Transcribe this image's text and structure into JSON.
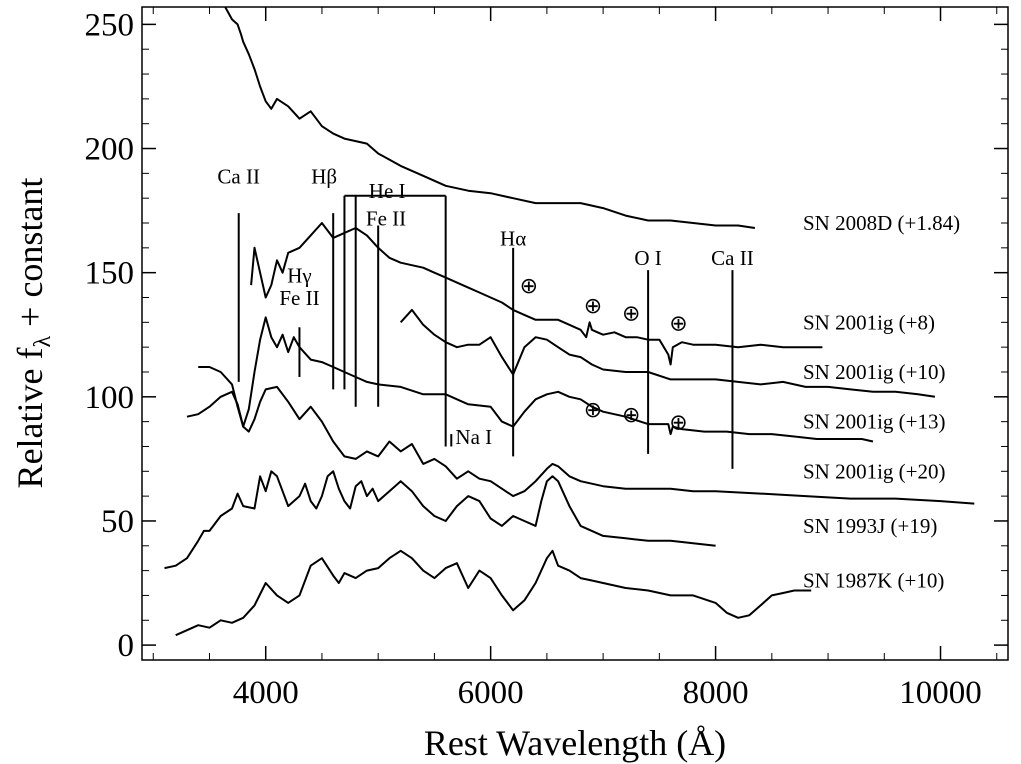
{
  "chart_data": {
    "type": "line",
    "xlabel": "Rest Wavelength (Å)",
    "ylabel_main": "Relative f",
    "ylabel_sub": "λ",
    "ylabel_tail": " + constant",
    "xlim": [
      2900,
      10600
    ],
    "ylim": [
      -6,
      257
    ],
    "x_ticks": [
      {
        "value": 4000,
        "label": "4000"
      },
      {
        "value": 6000,
        "label": "6000"
      },
      {
        "value": 8000,
        "label": "8000"
      },
      {
        "value": 10000,
        "label": "10000"
      }
    ],
    "y_ticks": [
      {
        "value": 0,
        "label": "0"
      },
      {
        "value": 50,
        "label": "50"
      },
      {
        "value": 100,
        "label": "100"
      },
      {
        "value": 150,
        "label": "150"
      },
      {
        "value": 200,
        "label": "200"
      },
      {
        "value": 250,
        "label": "250"
      }
    ],
    "series": [
      {
        "name": "SN 2008D",
        "label": "SN 2008D  (+1.84)",
        "label_y": 170,
        "x": [
          3640,
          3700,
          3750,
          3780,
          3800,
          3850,
          3900,
          3950,
          4000,
          4050,
          4100,
          4200,
          4300,
          4400,
          4500,
          4600,
          4700,
          4800,
          4900,
          5000,
          5200,
          5400,
          5600,
          5800,
          6000,
          6200,
          6400,
          6600,
          6800,
          7000,
          7200,
          7400,
          7600,
          7800,
          8000,
          8200,
          8350
        ],
        "y": [
          257,
          252,
          250,
          246,
          243,
          238,
          232,
          225,
          219,
          216,
          220,
          217,
          212,
          215,
          209,
          206,
          204,
          203,
          202,
          198,
          193,
          189,
          185,
          183,
          182,
          180,
          178,
          178,
          178,
          176,
          173,
          171,
          171,
          170,
          169,
          169,
          168
        ]
      },
      {
        "name": "SN 2001ig",
        "label": "SN 2001ig (+8)",
        "label_y": 130,
        "x": [
          3870,
          3900,
          3950,
          4000,
          4050,
          4100,
          4150,
          4200,
          4300,
          4400,
          4500,
          4600,
          4700,
          4800,
          4900,
          5000,
          5100,
          5200,
          5300,
          5400,
          5500,
          5600,
          5700,
          5800,
          5900,
          6000,
          6100,
          6200,
          6300,
          6400,
          6500,
          6600,
          6700,
          6800,
          6850,
          6880,
          6900,
          6950,
          7000,
          7100,
          7200,
          7300,
          7400,
          7500,
          7580,
          7600,
          7620,
          7700,
          7800,
          8000,
          8200,
          8400,
          8600,
          8800,
          8950
        ],
        "y": [
          145,
          160,
          150,
          140,
          145,
          155,
          150,
          158,
          160,
          165,
          170,
          164,
          166,
          168,
          165,
          160,
          156,
          154,
          153,
          152,
          150,
          148,
          146,
          144,
          142,
          140,
          138,
          135,
          133,
          131,
          131,
          131,
          129,
          127,
          124,
          130,
          127,
          126,
          125,
          126,
          124,
          124,
          123,
          123,
          117,
          113,
          120,
          122,
          121,
          121,
          120,
          121,
          120,
          120,
          120
        ]
      },
      {
        "name": "SN 2001ig",
        "label": "SN 2001ig (+10)",
        "label_y": 110,
        "x": [
          5200,
          5300,
          5400,
          5500,
          5600,
          5700,
          5800,
          5900,
          6000,
          6100,
          6200,
          6300,
          6400,
          6500,
          6600,
          6700,
          6800,
          6900,
          7000,
          7200,
          7400,
          7600,
          7800,
          8000,
          8200,
          8400,
          8600,
          8800,
          9000,
          9200,
          9400,
          9600,
          9800,
          9950
        ],
        "y": [
          130,
          135,
          129,
          125,
          122,
          120,
          121,
          121,
          124,
          116,
          109,
          120,
          124,
          123,
          120,
          117,
          116,
          113,
          111,
          110,
          110,
          107,
          107,
          107,
          106,
          105,
          106,
          104,
          104,
          103,
          102,
          102,
          101,
          100
        ]
      },
      {
        "name": "SN 2001ig",
        "label": "SN 2001ig (+13)",
        "label_y": 90,
        "x": [
          3400,
          3500,
          3600,
          3700,
          3750,
          3800,
          3850,
          3900,
          3950,
          4000,
          4050,
          4100,
          4150,
          4200,
          4250,
          4300,
          4400,
          4500,
          4600,
          4700,
          4800,
          4900,
          5000,
          5200,
          5400,
          5600,
          5800,
          6000,
          6100,
          6200,
          6300,
          6400,
          6500,
          6600,
          6700,
          6800,
          6900,
          7000,
          7200,
          7400,
          7500,
          7580,
          7600,
          7620,
          7700,
          7900,
          8100,
          8300,
          8500,
          8700,
          8900,
          9100,
          9300,
          9400
        ],
        "y": [
          112,
          112,
          110,
          105,
          96,
          88,
          95,
          110,
          123,
          132,
          124,
          120,
          125,
          118,
          124,
          120,
          115,
          114,
          112,
          110,
          108,
          106,
          105,
          104,
          101,
          101,
          97,
          96,
          90,
          88,
          94,
          99,
          101,
          102,
          100,
          99,
          96,
          94,
          92,
          89,
          89,
          89,
          85,
          88,
          87,
          86,
          86,
          85,
          85,
          84,
          83,
          83,
          83,
          82
        ]
      },
      {
        "name": "SN 2001ig",
        "label": "SN 2001ig (+20)",
        "label_y": 70,
        "x": [
          3300,
          3400,
          3500,
          3600,
          3700,
          3750,
          3800,
          3850,
          3900,
          3950,
          4000,
          4100,
          4200,
          4300,
          4400,
          4500,
          4600,
          4700,
          4800,
          4900,
          5000,
          5100,
          5200,
          5300,
          5400,
          5500,
          5600,
          5700,
          5800,
          5900,
          6000,
          6100,
          6200,
          6300,
          6400,
          6500,
          6550,
          6600,
          6700,
          6800,
          7000,
          7200,
          7400,
          7600,
          7800,
          8000,
          8400,
          8800,
          9200,
          9600,
          10000,
          10300
        ],
        "y": [
          92,
          93,
          96,
          100,
          102,
          97,
          88,
          86,
          91,
          98,
          103,
          104,
          98,
          91,
          96,
          90,
          82,
          76,
          75,
          78,
          76,
          82,
          78,
          81,
          73,
          75,
          72,
          67,
          70,
          67,
          66,
          63,
          60,
          62,
          66,
          71,
          73,
          72,
          68,
          66,
          64,
          63,
          63,
          63,
          62,
          62,
          61,
          60,
          59,
          59,
          58,
          57
        ]
      },
      {
        "name": "SN 1993J",
        "label": "SN 1993J   (+19)",
        "label_y": 48,
        "x": [
          3100,
          3200,
          3300,
          3400,
          3450,
          3500,
          3600,
          3700,
          3750,
          3800,
          3900,
          3950,
          4000,
          4050,
          4100,
          4150,
          4200,
          4300,
          4350,
          4400,
          4450,
          4500,
          4550,
          4600,
          4650,
          4700,
          4750,
          4800,
          4850,
          4900,
          4950,
          5000,
          5100,
          5200,
          5300,
          5400,
          5500,
          5600,
          5700,
          5800,
          5900,
          6000,
          6100,
          6200,
          6300,
          6400,
          6450,
          6500,
          6550,
          6600,
          6700,
          6800,
          7000,
          7200,
          7400,
          7600,
          7800,
          8000
        ],
        "y": [
          31,
          32,
          35,
          42,
          46,
          46,
          52,
          55,
          61,
          56,
          55,
          68,
          62,
          70,
          68,
          62,
          56,
          60,
          65,
          58,
          55,
          60,
          68,
          70,
          63,
          58,
          55,
          64,
          66,
          60,
          63,
          58,
          62,
          66,
          62,
          56,
          52,
          50,
          56,
          60,
          58,
          51,
          48,
          52,
          50,
          48,
          58,
          66,
          68,
          66,
          56,
          48,
          44,
          43,
          42,
          42,
          41,
          40
        ]
      },
      {
        "name": "SN 1987K",
        "label": "SN 1987K   (+10)",
        "label_y": 26,
        "x": [
          3200,
          3300,
          3400,
          3500,
          3600,
          3700,
          3800,
          3900,
          4000,
          4100,
          4200,
          4300,
          4400,
          4500,
          4600,
          4650,
          4700,
          4800,
          4900,
          5000,
          5100,
          5200,
          5300,
          5400,
          5500,
          5600,
          5700,
          5800,
          5900,
          6000,
          6100,
          6200,
          6300,
          6400,
          6500,
          6550,
          6600,
          6700,
          6800,
          6900,
          7000,
          7200,
          7400,
          7600,
          7800,
          8000,
          8100,
          8200,
          8300,
          8400,
          8500,
          8600,
          8700,
          8850
        ],
        "y": [
          4,
          6,
          8,
          7,
          10,
          9,
          11,
          16,
          25,
          20,
          17,
          20,
          32,
          35,
          28,
          25,
          29,
          27,
          30,
          31,
          35,
          38,
          35,
          30,
          27,
          31,
          33,
          23,
          30,
          27,
          20,
          14,
          18,
          25,
          35,
          38,
          32,
          30,
          27,
          26,
          25,
          23,
          22,
          20,
          20,
          17,
          13,
          11,
          12,
          16,
          20,
          21,
          22,
          22
        ]
      }
    ],
    "line_ids": [
      {
        "label": "Ca II",
        "x": 3760,
        "y_top": 174,
        "y_bottom": 106
      },
      {
        "label": "Hβ",
        "x": 4600,
        "y_top": 174,
        "y_bottom": 103
      },
      {
        "label": "Hγ",
        "x": 4300,
        "y_top": 128,
        "y_bottom": 108
      },
      {
        "label": "Fe II",
        "x": 5000,
        "y_top": 169,
        "y_bottom": 96
      },
      {
        "label": "Hα",
        "x": 6200,
        "y_top": 160,
        "y_bottom": 76
      },
      {
        "label": "Na I",
        "x": 5650,
        "y_top": 85,
        "y_bottom": 80
      },
      {
        "label": "O I",
        "x": 7400,
        "y_top": 151,
        "y_bottom": 77
      },
      {
        "label": "Ca II",
        "x": 8150,
        "y_top": 151,
        "y_bottom": 71
      }
    ],
    "line_id_labels": [
      {
        "text": "Ca II",
        "x": 3760,
        "y": 186
      },
      {
        "text": "Hβ",
        "x": 4520,
        "y": 186
      },
      {
        "text": "He I",
        "x": 5080,
        "y": 180
      },
      {
        "text": "Fe II",
        "x": 5070,
        "y": 169
      },
      {
        "text": "Hα",
        "x": 6200,
        "y": 161
      },
      {
        "text": "Hγ",
        "x": 4300,
        "y": 146
      },
      {
        "text": "Fe II",
        "x": 4300,
        "y": 137
      },
      {
        "text": "Na I",
        "x": 5850,
        "y": 81
      },
      {
        "text": "O I",
        "x": 7400,
        "y": 153
      },
      {
        "text": "Ca II",
        "x": 8150,
        "y": 153
      }
    ],
    "he_i_bracket": {
      "x": [
        4700,
        4800,
        5600
      ],
      "y_top": 181
    },
    "telluric_markers": [
      {
        "x": 6340,
        "y": 145
      },
      {
        "x": 6910,
        "y": 137
      },
      {
        "x": 7250,
        "y": 134
      },
      {
        "x": 7670,
        "y": 130
      },
      {
        "x": 6910,
        "y": 95
      },
      {
        "x": 7250,
        "y": 93
      },
      {
        "x": 7670,
        "y": 90
      }
    ],
    "telluric_symbol": "⊕"
  }
}
